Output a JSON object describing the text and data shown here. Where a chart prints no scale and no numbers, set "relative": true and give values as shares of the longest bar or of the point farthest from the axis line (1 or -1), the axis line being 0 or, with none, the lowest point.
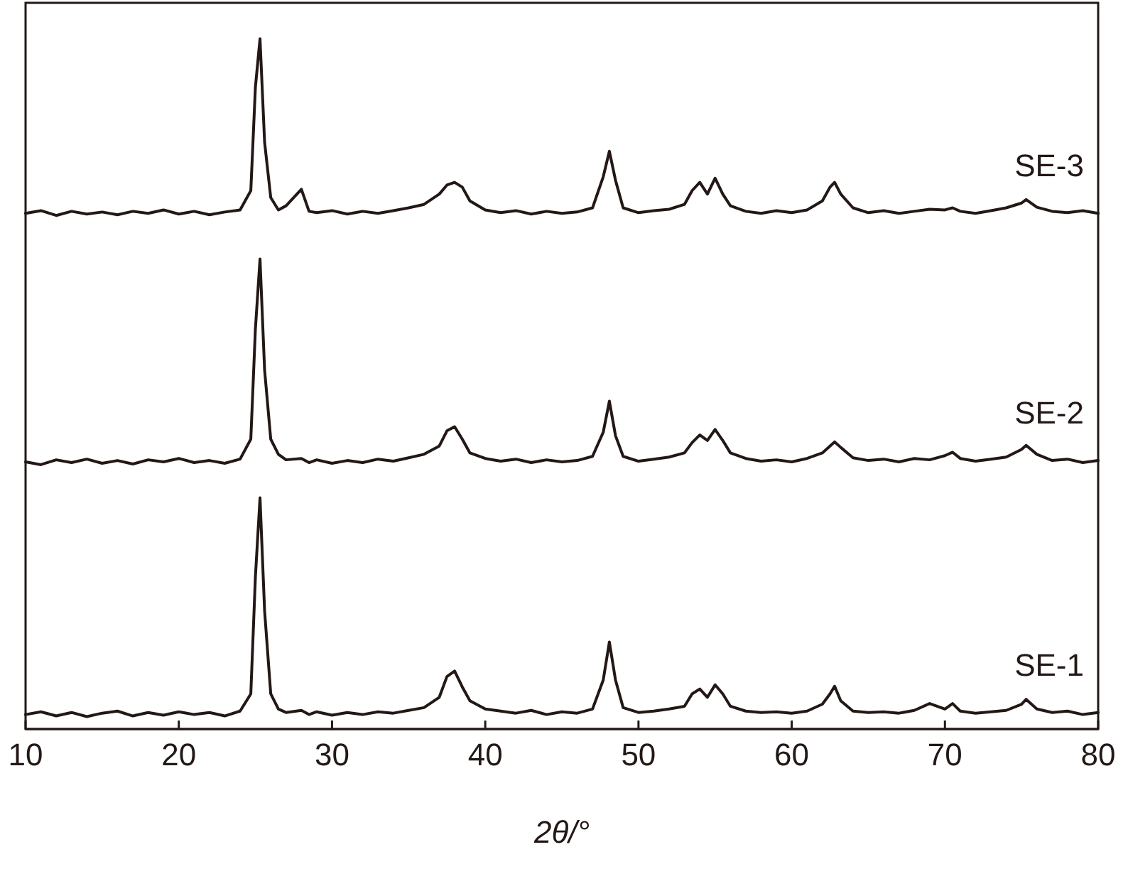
{
  "chart_data": {
    "type": "line",
    "relative": true,
    "xlabel": "2θ/°",
    "xlim": [
      10,
      80
    ],
    "xticks": [
      10,
      20,
      30,
      40,
      50,
      60,
      70,
      80
    ],
    "grid": false,
    "legend": false,
    "line_style": "solid",
    "x": [
      10,
      11,
      12,
      13,
      14,
      15,
      16,
      17,
      18,
      19,
      20,
      21,
      22,
      23,
      24,
      24.7,
      25.0,
      25.3,
      25.6,
      26.0,
      26.5,
      27,
      28,
      28.5,
      29,
      30,
      31,
      32,
      33,
      34,
      35,
      36,
      37,
      37.5,
      38,
      38.5,
      39,
      40,
      41,
      42,
      43,
      44,
      45,
      46,
      47,
      47.7,
      48.1,
      48.5,
      49,
      50,
      51,
      52,
      53,
      53.5,
      54,
      54.5,
      55,
      55.5,
      56,
      57,
      58,
      59,
      60,
      61,
      62,
      62.5,
      62.8,
      63.2,
      64,
      65,
      66,
      67,
      68,
      69,
      70,
      70.5,
      71,
      72,
      73,
      74,
      75,
      75.3,
      76,
      77,
      78,
      79,
      80
    ],
    "series": [
      {
        "name": "SE-1",
        "color": "#231815",
        "values": [
          0.021,
          0.025,
          0.019,
          0.024,
          0.018,
          0.023,
          0.026,
          0.019,
          0.024,
          0.02,
          0.025,
          0.021,
          0.024,
          0.019,
          0.026,
          0.051,
          0.221,
          0.335,
          0.171,
          0.051,
          0.029,
          0.024,
          0.027,
          0.021,
          0.025,
          0.02,
          0.024,
          0.021,
          0.025,
          0.023,
          0.027,
          0.031,
          0.046,
          0.076,
          0.084,
          0.061,
          0.041,
          0.029,
          0.026,
          0.023,
          0.027,
          0.021,
          0.025,
          0.023,
          0.029,
          0.071,
          0.126,
          0.071,
          0.031,
          0.024,
          0.026,
          0.029,
          0.033,
          0.051,
          0.058,
          0.046,
          0.064,
          0.051,
          0.033,
          0.026,
          0.024,
          0.025,
          0.023,
          0.026,
          0.036,
          0.051,
          0.062,
          0.041,
          0.026,
          0.024,
          0.025,
          0.023,
          0.027,
          0.037,
          0.029,
          0.037,
          0.026,
          0.023,
          0.025,
          0.027,
          0.036,
          0.043,
          0.029,
          0.024,
          0.026,
          0.021,
          0.024
        ]
      },
      {
        "name": "SE-2",
        "color": "#231815",
        "values": [
          0.387,
          0.383,
          0.39,
          0.386,
          0.391,
          0.385,
          0.389,
          0.384,
          0.39,
          0.387,
          0.392,
          0.386,
          0.389,
          0.385,
          0.391,
          0.42,
          0.58,
          0.681,
          0.52,
          0.42,
          0.398,
          0.39,
          0.392,
          0.386,
          0.39,
          0.385,
          0.389,
          0.386,
          0.391,
          0.388,
          0.393,
          0.398,
          0.41,
          0.432,
          0.438,
          0.42,
          0.4,
          0.392,
          0.388,
          0.391,
          0.386,
          0.39,
          0.387,
          0.389,
          0.395,
          0.43,
          0.475,
          0.425,
          0.395,
          0.388,
          0.391,
          0.394,
          0.4,
          0.415,
          0.426,
          0.418,
          0.434,
          0.418,
          0.4,
          0.392,
          0.388,
          0.39,
          0.387,
          0.392,
          0.4,
          0.41,
          0.416,
          0.408,
          0.393,
          0.389,
          0.391,
          0.387,
          0.392,
          0.39,
          0.396,
          0.401,
          0.392,
          0.388,
          0.391,
          0.394,
          0.405,
          0.411,
          0.398,
          0.389,
          0.391,
          0.386,
          0.389
        ]
      },
      {
        "name": "SE-3",
        "color": "#231815",
        "values": [
          0.747,
          0.751,
          0.744,
          0.75,
          0.746,
          0.749,
          0.745,
          0.75,
          0.747,
          0.752,
          0.746,
          0.75,
          0.745,
          0.749,
          0.752,
          0.78,
          0.93,
          1,
          0.85,
          0.77,
          0.752,
          0.758,
          0.782,
          0.75,
          0.748,
          0.751,
          0.746,
          0.75,
          0.747,
          0.751,
          0.755,
          0.76,
          0.775,
          0.788,
          0.792,
          0.785,
          0.765,
          0.752,
          0.748,
          0.751,
          0.746,
          0.75,
          0.747,
          0.749,
          0.755,
          0.8,
          0.837,
          0.795,
          0.755,
          0.748,
          0.751,
          0.753,
          0.76,
          0.78,
          0.792,
          0.775,
          0.798,
          0.775,
          0.758,
          0.75,
          0.747,
          0.751,
          0.748,
          0.752,
          0.765,
          0.785,
          0.792,
          0.775,
          0.755,
          0.748,
          0.751,
          0.747,
          0.75,
          0.753,
          0.752,
          0.755,
          0.75,
          0.747,
          0.751,
          0.755,
          0.762,
          0.767,
          0.756,
          0.75,
          0.748,
          0.751,
          0.747
        ]
      }
    ]
  }
}
